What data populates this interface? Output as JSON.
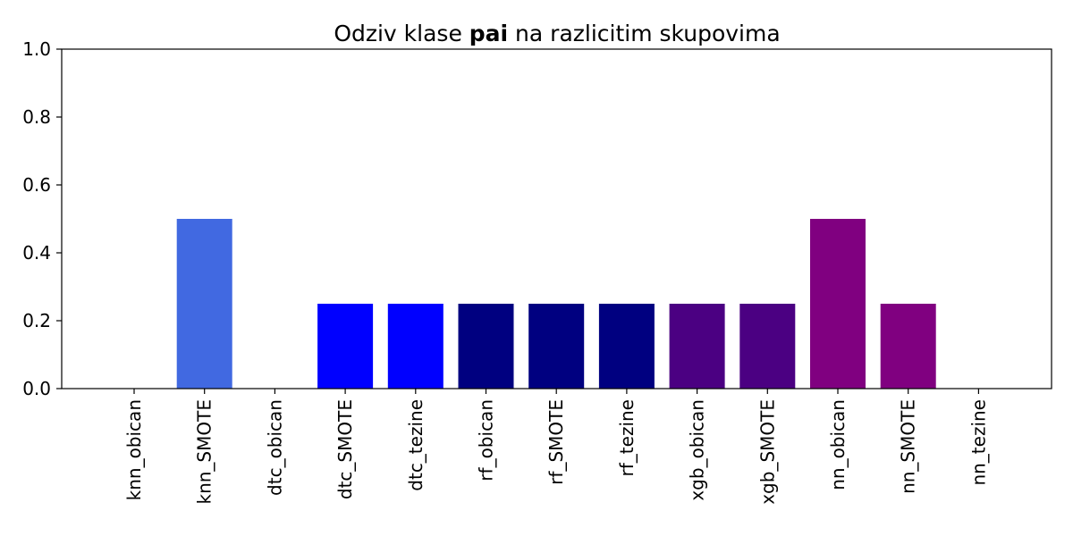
{
  "chart_data": {
    "type": "bar",
    "title": {
      "before": "Odziv klase ",
      "highlight": "pai",
      "after": " na razlicitim skupovima"
    },
    "xlabel": "",
    "ylabel": "",
    "ylim": [
      0,
      1.0
    ],
    "yticks": [
      "0.0",
      "0.2",
      "0.4",
      "0.6",
      "0.8",
      "1.0"
    ],
    "ytick_values": [
      0.0,
      0.2,
      0.4,
      0.6,
      0.8,
      1.0
    ],
    "grid": false,
    "categories": [
      "knn_obican",
      "knn_SMOTE",
      "dtc_obican",
      "dtc_SMOTE",
      "dtc_tezine",
      "rf_obican",
      "rf_SMOTE",
      "rf_tezine",
      "xgb_obican",
      "xgb_SMOTE",
      "nn_obican",
      "nn_SMOTE",
      "nn_tezine"
    ],
    "values": [
      0.0,
      0.5,
      0.0,
      0.25,
      0.25,
      0.25,
      0.25,
      0.25,
      0.25,
      0.25,
      0.5,
      0.25,
      0.0
    ],
    "colors": [
      "#4169e1",
      "#4169e1",
      "#0000ff",
      "#0000ff",
      "#0000ff",
      "#000080",
      "#000080",
      "#000080",
      "#4b0082",
      "#4b0082",
      "#800080",
      "#800080",
      "#800080"
    ]
  }
}
